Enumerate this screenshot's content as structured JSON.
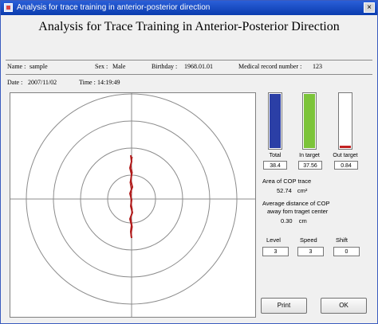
{
  "window": {
    "title": "Analysis for trace training in anterior-posterior direction",
    "close_label": "×"
  },
  "header": {
    "title": "Analysis for Trace Training in Anterior-Posterior Direction"
  },
  "info": {
    "name_label": "Name :",
    "name_value": "sample",
    "sex_label": "Sex :",
    "sex_value": "Male",
    "birthday_label": "Birthday :",
    "birthday_value": "1968.01.01",
    "record_label": "Medical record number :",
    "record_value": "123",
    "date_label": "Date :",
    "date_value": "2007/11/02",
    "time_label": "Time :",
    "time_value": "14:19:49"
  },
  "bars": [
    {
      "label": "Total",
      "value": "38.4",
      "fill": 1.0,
      "color": "#2b3fa6"
    },
    {
      "label": "In target",
      "value": "37.56",
      "fill": 1.0,
      "color": "#7cc43a"
    },
    {
      "label": "Out target",
      "value": "0.84",
      "fill": 0.04,
      "color": "#c22222"
    }
  ],
  "stats": {
    "area_label": "Area of COP trace",
    "area_value": "52.74",
    "area_unit": "cm²",
    "dist_label_1": "Average distance of COP",
    "dist_label_2": "away fom traget center",
    "dist_value": "0.30",
    "dist_unit": "cm"
  },
  "settings": {
    "level_label": "Level",
    "level_value": "3",
    "speed_label": "Speed",
    "speed_value": "3",
    "shift_label": "Shift",
    "shift_value": "0"
  },
  "buttons": {
    "print": "Print",
    "ok": "OK"
  },
  "colors": {
    "trace": "#b01818",
    "rings": "#8c8c8c",
    "titlebar": "#0a3cae"
  }
}
